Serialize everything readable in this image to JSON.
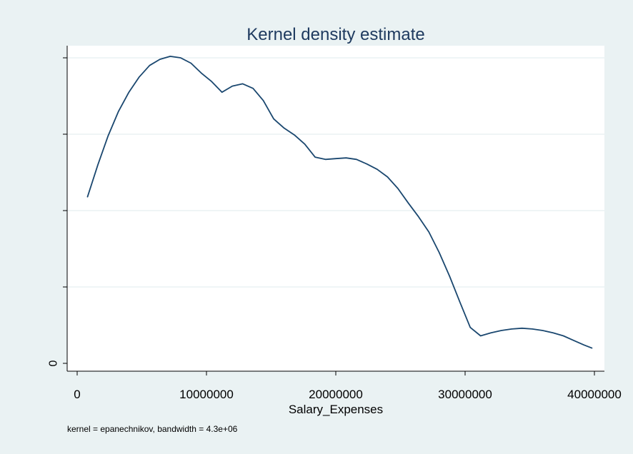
{
  "chart_data": {
    "type": "line",
    "title": "Kernel density estimate",
    "xlabel": "Salary_Expenses",
    "ylabel": "",
    "note": "kernel = epanechnikov, bandwidth =  4.3e+06",
    "xlim": [
      0,
      40000000
    ],
    "ylim": [
      0,
      4
    ],
    "x_ticks": [
      {
        "value": 0,
        "label": "0"
      },
      {
        "value": 10000000,
        "label": "10000000"
      },
      {
        "value": 20000000,
        "label": "20000000"
      },
      {
        "value": 30000000,
        "label": "30000000"
      },
      {
        "value": 40000000,
        "label": "40000000"
      }
    ],
    "y_ticks": [
      {
        "value": 0,
        "label": "0"
      },
      {
        "value": 1,
        "label": ""
      },
      {
        "value": 2,
        "label": ""
      },
      {
        "value": 3,
        "label": ""
      },
      {
        "value": 4,
        "label": ""
      }
    ],
    "grid": true,
    "colors": {
      "background": "#eaf2f3",
      "plot_area": "#ffffff",
      "line": "#1a476f",
      "grid": "#eaf2f3",
      "axis": "#000000",
      "title": "#1e3a5f"
    },
    "series": [
      {
        "x": [
          800000,
          1600000,
          2400000,
          3200000,
          4000000,
          4800000,
          5600000,
          6400000,
          7200000,
          8000000,
          8800000,
          9600000,
          10400000,
          11200000,
          12000000,
          12800000,
          13600000,
          14400000,
          15200000,
          16000000,
          16800000,
          17600000,
          18400000,
          19200000,
          20000000,
          20800000,
          21600000,
          22400000,
          23200000,
          24000000,
          24800000,
          25600000,
          26400000,
          27200000,
          28000000,
          28800000,
          29600000,
          30400000,
          31200000,
          32000000,
          32800000,
          33600000,
          34400000,
          35200000,
          36000000,
          36800000,
          37600000,
          38400000,
          39200000,
          39800000
        ],
        "y": [
          2.18,
          2.6,
          2.98,
          3.3,
          3.55,
          3.75,
          3.9,
          3.98,
          4.02,
          4.0,
          3.93,
          3.8,
          3.69,
          3.55,
          3.63,
          3.66,
          3.6,
          3.44,
          3.2,
          3.08,
          2.99,
          2.87,
          2.7,
          2.67,
          2.68,
          2.69,
          2.67,
          2.61,
          2.54,
          2.44,
          2.29,
          2.1,
          1.92,
          1.72,
          1.45,
          1.14,
          0.8,
          0.47,
          0.36,
          0.4,
          0.43,
          0.45,
          0.46,
          0.45,
          0.43,
          0.4,
          0.36,
          0.3,
          0.24,
          0.2
        ]
      }
    ]
  }
}
